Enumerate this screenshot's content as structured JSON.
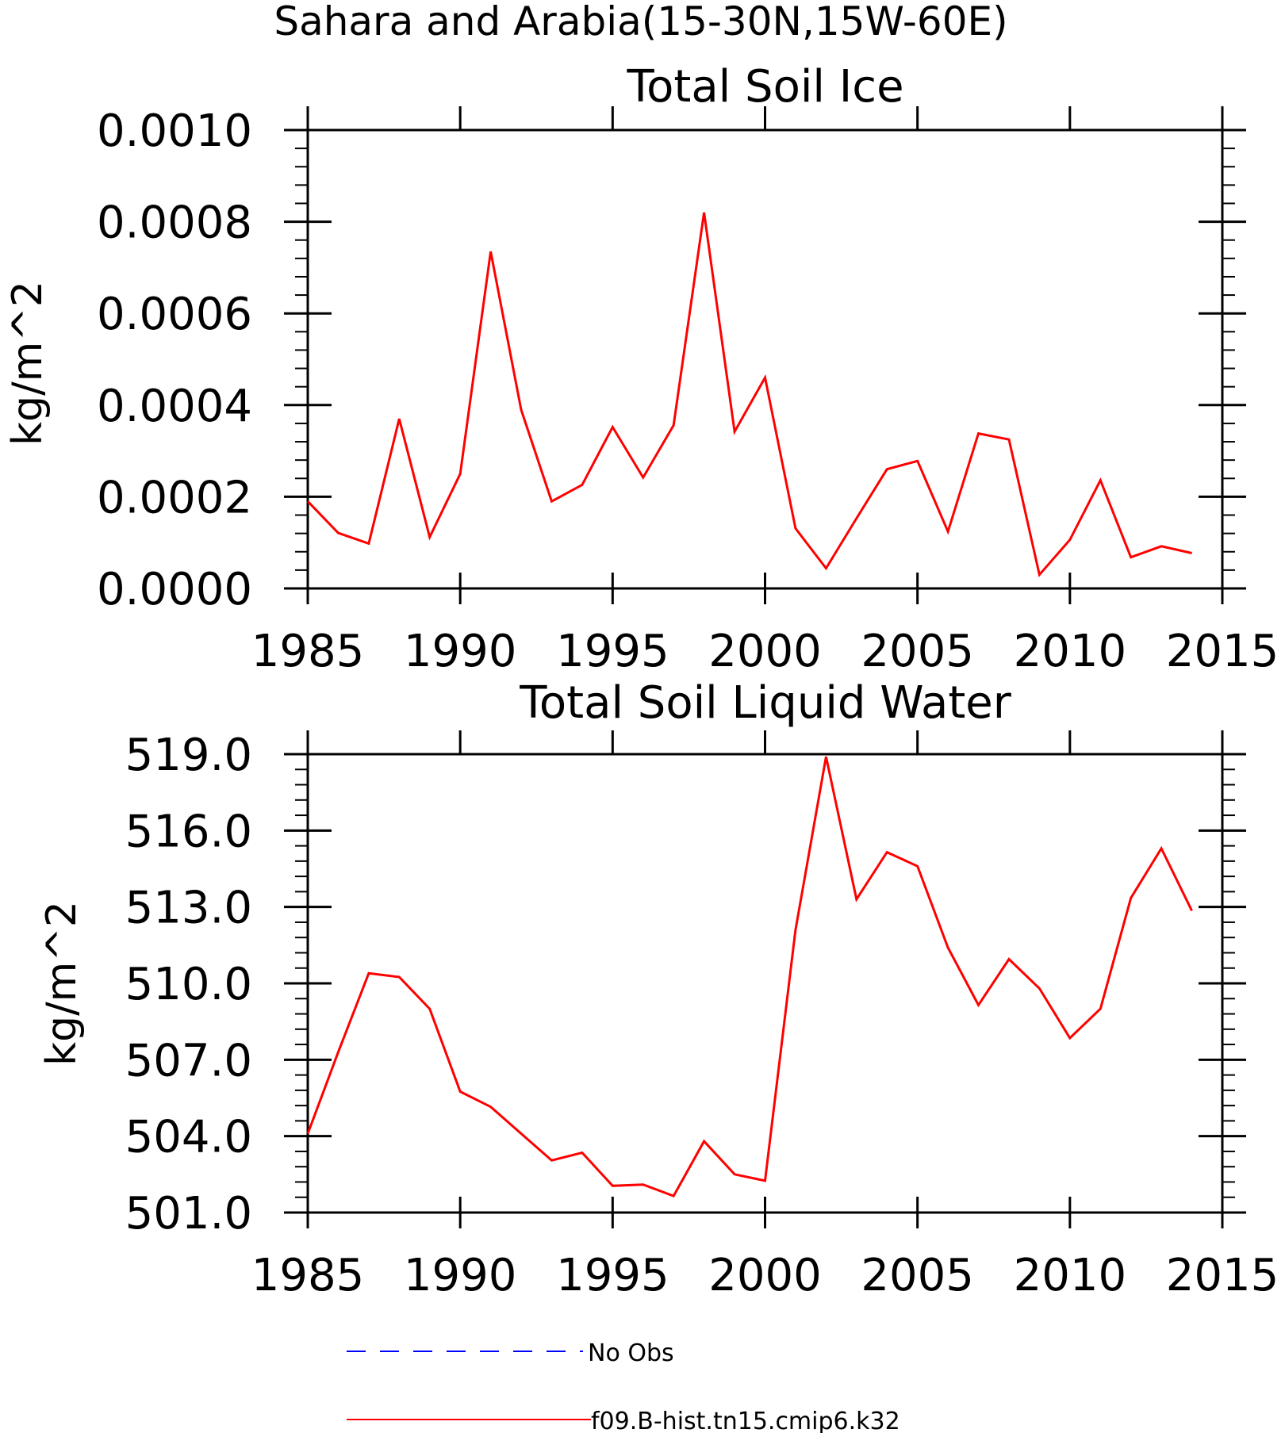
{
  "figure": {
    "title": "Sahara and Arabia(15-30N,15W-60E)"
  },
  "chart_data": [
    {
      "type": "line",
      "title": "Total Soil Ice",
      "xlabel": "",
      "ylabel": "kg/m^2",
      "xlim": [
        1985,
        2015
      ],
      "ylim": [
        0.0,
        0.001
      ],
      "xticks": [
        1985,
        1990,
        1995,
        2000,
        2005,
        2010,
        2015
      ],
      "xtick_labels": [
        "1985",
        "1990",
        "1995",
        "2000",
        "2005",
        "2010",
        "2015"
      ],
      "yticks": [
        0.0,
        0.0002,
        0.0004,
        0.0006,
        0.0008,
        0.001
      ],
      "ytick_labels": [
        "0.0000",
        "0.0002",
        "0.0004",
        "0.0006",
        "0.0008",
        "0.0010"
      ],
      "grid": false,
      "series": [
        {
          "name": "f09.B-hist.tn15.cmip6.k32",
          "color": "#ff0000",
          "x": [
            1985,
            1986,
            1987,
            1988,
            1989,
            1990,
            1991,
            1992,
            1993,
            1994,
            1995,
            1996,
            1997,
            1998,
            1999,
            2000,
            2001,
            2002,
            2003,
            2004,
            2005,
            2006,
            2007,
            2008,
            2009,
            2010,
            2011,
            2012,
            2013,
            2014
          ],
          "y": [
            0.00019,
            0.000121,
            9.8e-05,
            0.00037,
            0.000112,
            0.00025,
            0.000735,
            0.00039,
            0.00019,
            0.000226,
            0.000352,
            0.000242,
            0.000356,
            0.00082,
            0.000342,
            0.00046,
            0.000131,
            4.4e-05,
            0.000153,
            0.00026,
            0.000278,
            0.000124,
            0.000338,
            0.000325,
            3e-05,
            0.000106,
            0.000236,
            6.8e-05,
            9.2e-05,
            7.7e-05
          ]
        }
      ]
    },
    {
      "type": "line",
      "title": "Total Soil Liquid Water",
      "xlabel": "",
      "ylabel": "kg/m^2",
      "xlim": [
        1985,
        2015
      ],
      "ylim": [
        501.0,
        519.0
      ],
      "xticks": [
        1985,
        1990,
        1995,
        2000,
        2005,
        2010,
        2015
      ],
      "xtick_labels": [
        "1985",
        "1990",
        "1995",
        "2000",
        "2005",
        "2010",
        "2015"
      ],
      "yticks": [
        501.0,
        504.0,
        507.0,
        510.0,
        513.0,
        516.0,
        519.0
      ],
      "ytick_labels": [
        "501.0",
        "504.0",
        "507.0",
        "510.0",
        "513.0",
        "516.0",
        "519.0"
      ],
      "grid": false,
      "series": [
        {
          "name": "f09.B-hist.tn15.cmip6.k32",
          "color": "#ff0000",
          "x": [
            1985,
            1986,
            1987,
            1988,
            1989,
            1990,
            1991,
            1992,
            1993,
            1994,
            1995,
            1996,
            1997,
            1998,
            1999,
            2000,
            2001,
            2002,
            2003,
            2004,
            2005,
            2006,
            2007,
            2008,
            2009,
            2010,
            2011,
            2012,
            2013,
            2014
          ],
          "y": [
            504.1,
            507.3,
            510.4,
            510.25,
            509.0,
            505.75,
            505.15,
            504.1,
            503.05,
            503.35,
            502.05,
            502.1,
            501.65,
            503.8,
            502.5,
            502.25,
            512.1,
            518.9,
            513.3,
            515.15,
            514.6,
            511.4,
            509.15,
            510.95,
            509.8,
            507.85,
            509.0,
            513.35,
            515.3,
            512.85
          ]
        }
      ]
    }
  ],
  "legend": {
    "placement": "bottom",
    "items": [
      {
        "label": "No Obs",
        "color": "#0000ff",
        "style": "dashed"
      },
      {
        "label": "f09.B-hist.tn15.cmip6.k32",
        "color": "#ff0000",
        "style": "solid"
      }
    ]
  }
}
